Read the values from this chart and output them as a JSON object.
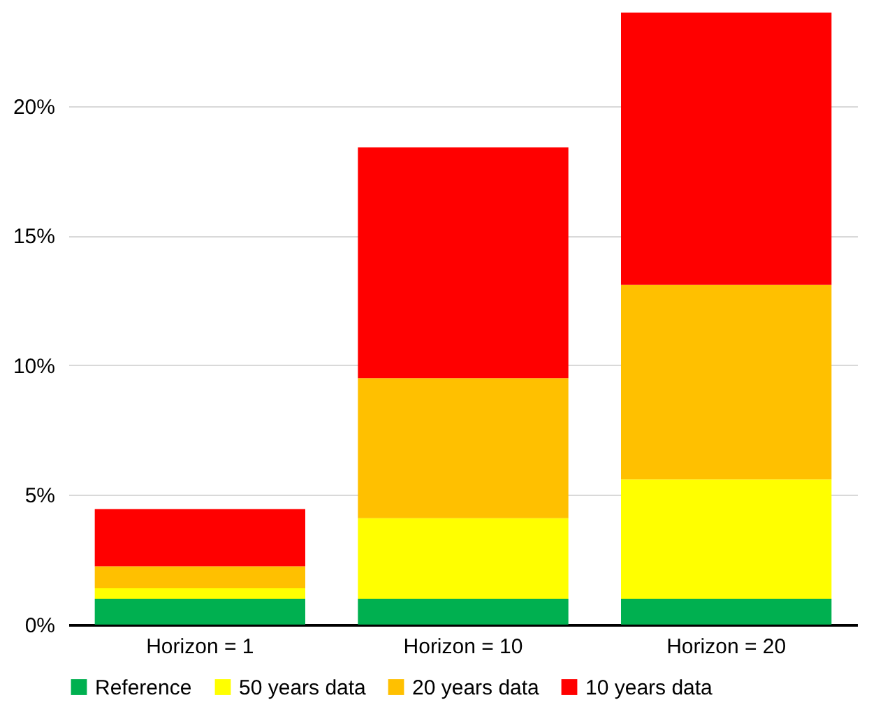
{
  "chart_data": {
    "type": "bar",
    "stacked": true,
    "categories": [
      "Horizon = 1",
      "Horizon = 10",
      "Horizon = 20"
    ],
    "series": [
      {
        "name": "Reference",
        "color": "#00b050",
        "values": [
          1.0,
          1.0,
          1.0
        ]
      },
      {
        "name": "50 years data",
        "color": "#ffff00",
        "values": [
          0.4,
          3.1,
          4.6
        ]
      },
      {
        "name": "20 years data",
        "color": "#ffc000",
        "values": [
          0.85,
          5.4,
          7.5
        ]
      },
      {
        "name": "10 years data",
        "color": "#ff0000",
        "values": [
          2.2,
          8.9,
          10.5
        ]
      }
    ],
    "ylim": [
      0,
      23.6
    ],
    "yticks": [
      {
        "value": 0,
        "label": "0%"
      },
      {
        "value": 5,
        "label": "5%"
      },
      {
        "value": 10,
        "label": "10%"
      },
      {
        "value": 15,
        "label": "15%"
      },
      {
        "value": 20,
        "label": "20%"
      }
    ],
    "grid": "y",
    "legend": "bottom"
  }
}
